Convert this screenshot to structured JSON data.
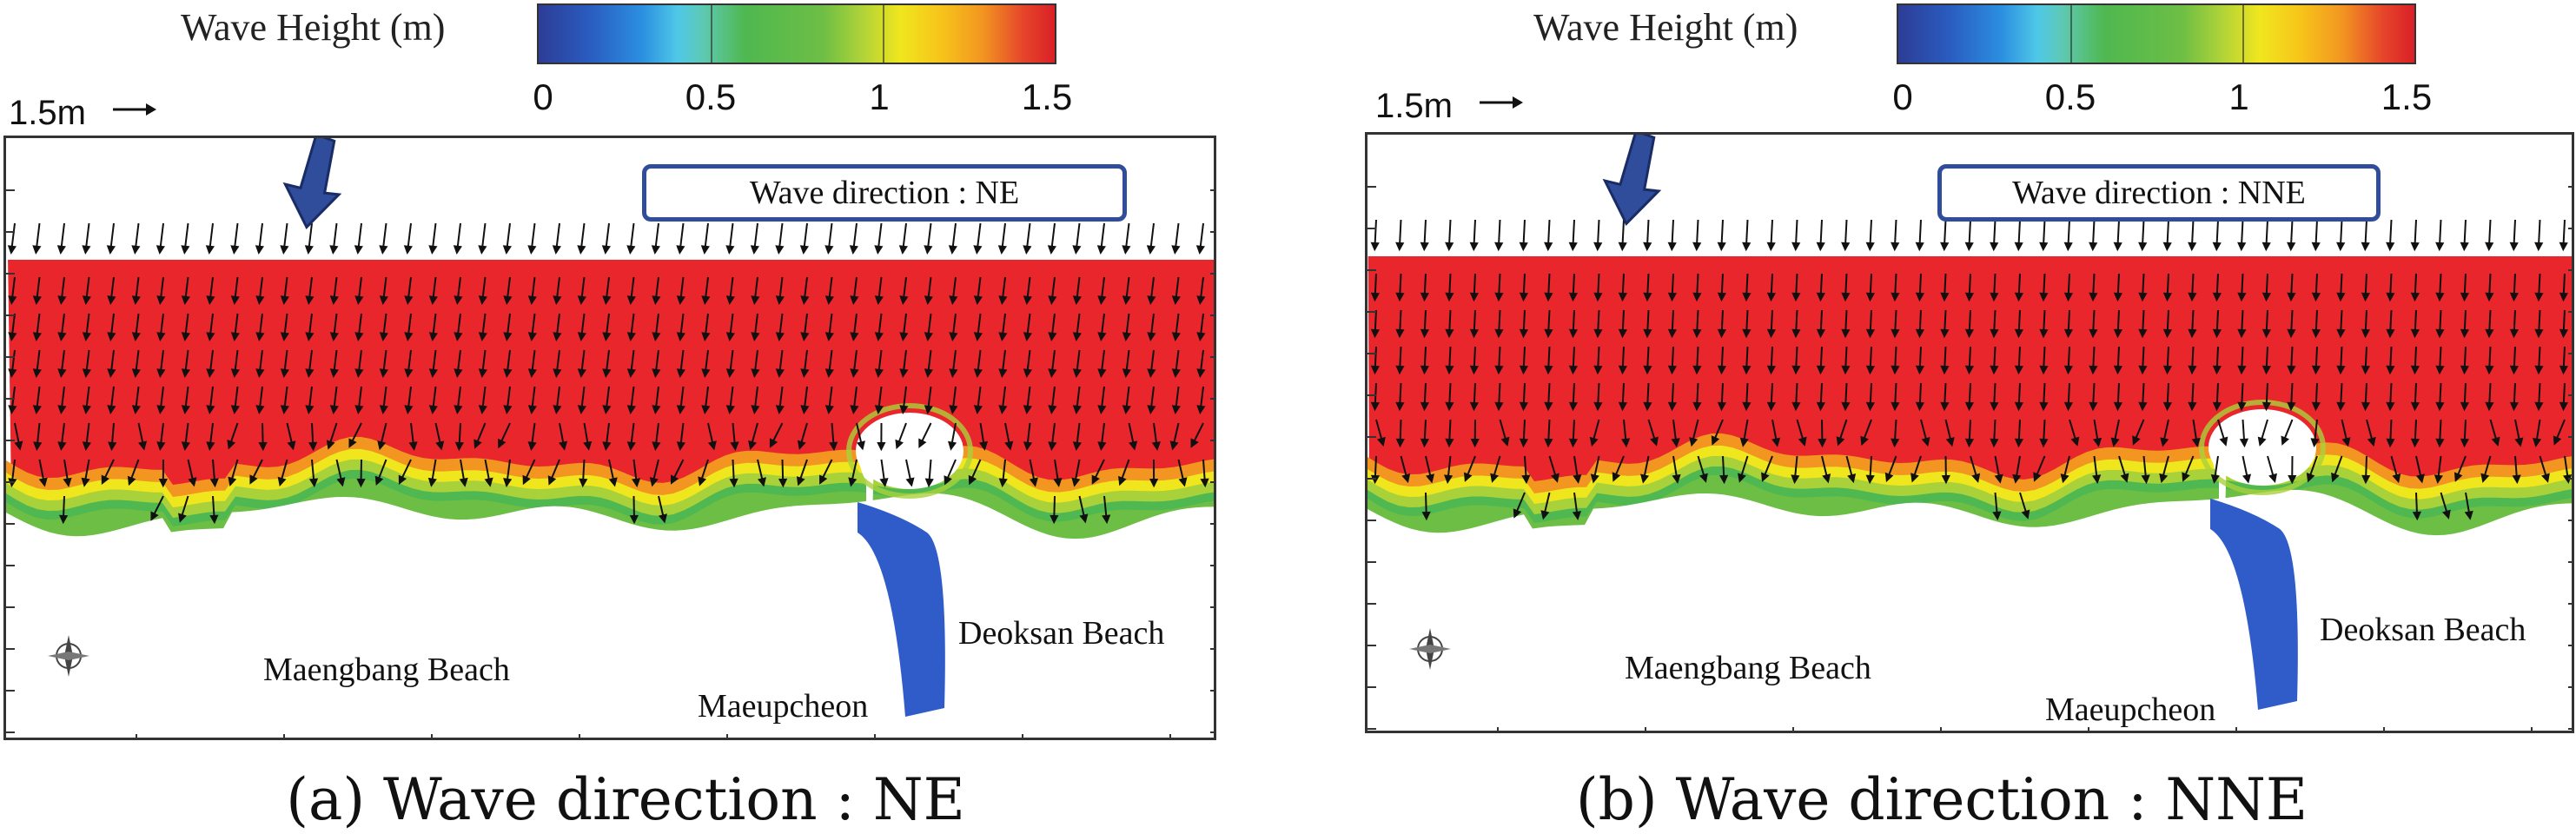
{
  "colorbar": {
    "title": "Wave Height (m)",
    "ticks": [
      "0",
      "0.5",
      "1",
      "1.5"
    ],
    "range": [
      0,
      1.5
    ],
    "colors": [
      "#2c3d96",
      "#2b8fe0",
      "#4fc8e8",
      "#4fb850",
      "#a9d13a",
      "#f0e61e",
      "#f29621",
      "#d92027"
    ]
  },
  "scale_label": "1.5m",
  "panels": [
    {
      "direction_label": "Wave direction : NE",
      "caption": "(a) Wave direction : NE",
      "places": {
        "maengbang": "Maengbang Beach",
        "maeupcheon": "Maeupcheon",
        "deoksan": "Deoksan Beach"
      }
    },
    {
      "direction_label": "Wave direction : NNE",
      "caption": "(b) Wave direction : NNE",
      "places": {
        "maengbang": "Maengbang Beach",
        "maeupcheon": "Maeupcheon",
        "deoksan": "Deoksan Beach"
      }
    }
  ],
  "colors": {
    "high": "#e8262b",
    "river": "#2f5cc8",
    "frame": "#333333",
    "direction_box_border": "#2f4d9b",
    "direction_arrow": "#2f4d9b"
  }
}
